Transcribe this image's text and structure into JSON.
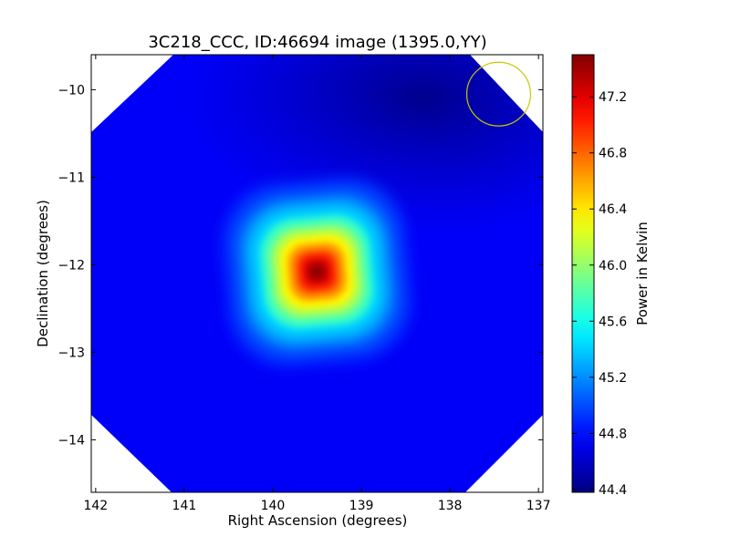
{
  "chart_data": {
    "type": "heatmap",
    "title": "3C218_CCC, ID:46694 image (1395.0,YY)",
    "xlabel": "Right Ascension (degrees)",
    "ylabel": "Declination (degrees)",
    "xlim": [
      142.05,
      136.95
    ],
    "ylim": [
      -14.6,
      -9.6
    ],
    "x_ticks": [
      142,
      141,
      140,
      139,
      138,
      137
    ],
    "x_tick_labels": [
      "142",
      "141",
      "140",
      "139",
      "138",
      "137"
    ],
    "y_ticks": [
      -10,
      -11,
      -12,
      -13,
      -14
    ],
    "y_tick_labels": [
      "−10",
      "−11",
      "−12",
      "−13",
      "−14"
    ],
    "colorbar": {
      "label": "Power in Kelvin",
      "range": [
        44.38,
        47.5
      ],
      "colormap": "jet",
      "ticks": [
        44.4,
        44.8,
        45.2,
        45.6,
        46.0,
        46.4,
        46.8,
        47.2
      ],
      "tick_labels": [
        "44.4",
        "44.8",
        "45.2",
        "45.6",
        "46.0",
        "46.4",
        "46.8",
        "47.2"
      ]
    },
    "background_level": 44.75,
    "source": {
      "ra": 139.5,
      "dec": -12.08,
      "peak": 47.45
    },
    "beam_circle": {
      "ra": 137.45,
      "dec": -10.05,
      "radius_deg": 0.36,
      "color": "#c8c800"
    },
    "grid": false,
    "legend": "none"
  }
}
